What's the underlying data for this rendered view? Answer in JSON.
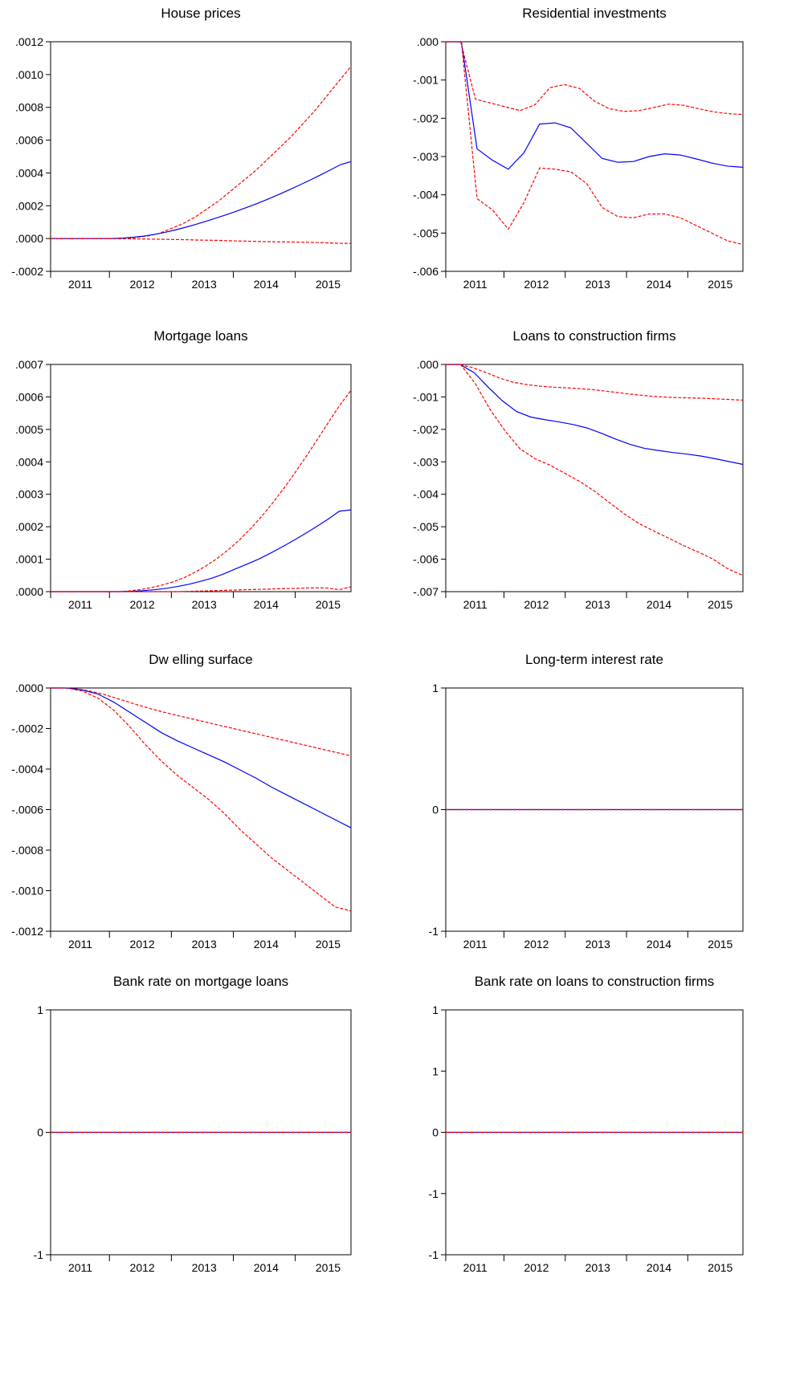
{
  "chart_data": [
    {
      "type": "line",
      "title": "House prices",
      "ylim": [
        -0.0002,
        0.0012
      ],
      "yticks": [
        ".0012",
        ".0010",
        ".0008",
        ".0006",
        ".0004",
        ".0002",
        ".0000",
        "-.0002"
      ],
      "yvalues": [
        0.0012,
        0.001,
        0.0008,
        0.0006,
        0.0004,
        0.0002,
        0.0,
        -0.0002
      ],
      "xticks": [
        "2011",
        "2012",
        "2013",
        "2014",
        "2015"
      ],
      "series": [
        {
          "role": "upper",
          "color": "#ff0000",
          "dashed": true,
          "values": [
            0,
            0,
            0,
            0,
            0,
            0,
            1e-06,
            6e-06,
            1.5e-05,
            3e-05,
            6e-05,
            9e-05,
            0.00013,
            0.00018,
            0.00023,
            0.00029,
            0.00035,
            0.00041,
            0.00048,
            0.00055,
            0.00062,
            0.0007,
            0.00078,
            0.00087,
            0.00096,
            0.00105
          ]
        },
        {
          "role": "median",
          "color": "#0000ff",
          "dashed": false,
          "values": [
            0,
            0,
            0,
            0,
            0,
            0,
            0,
            3e-06,
            8e-06,
            1.5e-05,
            2.5e-05,
            3.7e-05,
            5.2e-05,
            6.8e-05,
            8.6e-05,
            0.000105,
            0.000125,
            0.000146,
            0.000168,
            0.000191,
            0.000215,
            0.000241,
            0.000268,
            0.000296,
            0.000325,
            0.000355,
            0.000386,
            0.000418,
            0.000451,
            0.000469
          ]
        },
        {
          "role": "lower",
          "color": "#ff0000",
          "dashed": true,
          "values": [
            0,
            0,
            0,
            0,
            0,
            0,
            0,
            -1e-06,
            -2e-06,
            -3e-06,
            -4e-06,
            -5e-06,
            -6e-06,
            -7e-06,
            -9e-06,
            -1e-05,
            -1.1e-05,
            -1.3e-05,
            -1.5e-05,
            -1.6e-05,
            -1.8e-05,
            -1.9e-05,
            -2e-05,
            -2.1e-05,
            -2.2e-05,
            -2.3e-05,
            -2.5e-05,
            -2.7e-05,
            -2.9e-05,
            -3e-05
          ]
        }
      ]
    },
    {
      "type": "line",
      "title": "Residential investments",
      "ylim": [
        -0.006,
        0.0
      ],
      "yticks": [
        ".000",
        "-.001",
        "-.002",
        "-.003",
        "-.004",
        "-.005",
        "-.006"
      ],
      "yvalues": [
        0.0,
        -0.001,
        -0.002,
        -0.003,
        -0.004,
        -0.005,
        -0.006
      ],
      "xticks": [
        "2011",
        "2012",
        "2013",
        "2014",
        "2015"
      ],
      "series": [
        {
          "role": "upper",
          "color": "#ff0000",
          "dashed": true,
          "values": [
            0,
            0,
            -0.0015,
            -0.0016,
            -0.0017,
            -0.0018,
            -0.00165,
            -0.0012,
            -0.00112,
            -0.00122,
            -0.00155,
            -0.00175,
            -0.00182,
            -0.0018,
            -0.00172,
            -0.00163,
            -0.00166,
            -0.00175,
            -0.00183,
            -0.00188,
            -0.0019
          ]
        },
        {
          "role": "median",
          "color": "#0000ff",
          "dashed": false,
          "values": [
            0,
            0,
            -0.0028,
            -0.0031,
            -0.00333,
            -0.0029,
            -0.00215,
            -0.00212,
            -0.00225,
            -0.00265,
            -0.00305,
            -0.00315,
            -0.00313,
            -0.003,
            -0.00293,
            -0.00296,
            -0.00306,
            -0.00317,
            -0.00325,
            -0.00328
          ]
        },
        {
          "role": "lower",
          "color": "#ff0000",
          "dashed": true,
          "values": [
            0,
            0,
            -0.0041,
            -0.0044,
            -0.0049,
            -0.0042,
            -0.0033,
            -0.00333,
            -0.0034,
            -0.0037,
            -0.00433,
            -0.00457,
            -0.0046,
            -0.0045,
            -0.0045,
            -0.0046,
            -0.0048,
            -0.005,
            -0.0052,
            -0.0053
          ]
        }
      ]
    },
    {
      "type": "line",
      "title": "Mortgage loans",
      "ylim": [
        0.0,
        0.0007
      ],
      "yticks": [
        ".0007",
        ".0006",
        ".0005",
        ".0004",
        ".0003",
        ".0002",
        ".0001",
        ".0000"
      ],
      "yvalues": [
        0.0007,
        0.0006,
        0.0005,
        0.0004,
        0.0003,
        0.0002,
        0.0001,
        0.0
      ],
      "xticks": [
        "2011",
        "2012",
        "2013",
        "2014",
        "2015"
      ],
      "series": [
        {
          "role": "upper",
          "color": "#ff0000",
          "dashed": true,
          "values": [
            0,
            0,
            0,
            0,
            0,
            0,
            0,
            2e-06,
            6e-06,
            1.2e-05,
            2e-05,
            3e-05,
            4.3e-05,
            6e-05,
            8e-05,
            0.000103,
            0.00013,
            0.00016,
            0.000195,
            0.000233,
            0.000275,
            0.00032,
            0.000368,
            0.000418,
            0.00047,
            0.000523,
            0.000575,
            0.00062
          ]
        },
        {
          "role": "median",
          "color": "#0000ff",
          "dashed": false,
          "values": [
            0,
            0,
            0,
            0,
            0,
            0,
            0,
            1e-06,
            3e-06,
            6e-06,
            1e-05,
            1.6e-05,
            2.3e-05,
            3.2e-05,
            4.2e-05,
            5.5e-05,
            7e-05,
            8.5e-05,
            0.0001,
            0.000118,
            0.000137,
            0.000157,
            0.000178,
            0.0002,
            0.000223,
            0.000248,
            0.000252
          ]
        },
        {
          "role": "lower",
          "color": "#ff0000",
          "dashed": true,
          "values": [
            0,
            0,
            0,
            0,
            0,
            0,
            0,
            0,
            0,
            0,
            0,
            0,
            1e-06,
            2e-06,
            3e-06,
            4e-06,
            5e-06,
            6e-06,
            7e-06,
            8e-06,
            9e-06,
            1e-05,
            1.1e-05,
            1.2e-05,
            1.1e-05,
            6e-06,
            1.5e-05
          ]
        }
      ]
    },
    {
      "type": "line",
      "title": "Loans to construction firms",
      "ylim": [
        -0.007,
        0.0
      ],
      "yticks": [
        ".000",
        "-.001",
        "-.002",
        "-.003",
        "-.004",
        "-.005",
        "-.006",
        "-.007"
      ],
      "yvalues": [
        0.0,
        -0.001,
        -0.002,
        -0.003,
        -0.004,
        -0.005,
        -0.006,
        -0.007
      ],
      "xticks": [
        "2011",
        "2012",
        "2013",
        "2014",
        "2015"
      ],
      "series": [
        {
          "role": "upper",
          "color": "#ff0000",
          "dashed": true,
          "values": [
            0,
            0,
            -0.0001,
            -0.00025,
            -0.00042,
            -0.00055,
            -0.00062,
            -0.00067,
            -0.0007,
            -0.00072,
            -0.00075,
            -0.00078,
            -0.00083,
            -0.00088,
            -0.00093,
            -0.00097,
            -0.001,
            -0.00102,
            -0.00103,
            -0.00104,
            -0.00106,
            -0.00108,
            -0.0011
          ]
        },
        {
          "role": "median",
          "color": "#0000ff",
          "dashed": false,
          "values": [
            0,
            0,
            -0.00025,
            -0.0007,
            -0.00112,
            -0.00145,
            -0.00162,
            -0.0017,
            -0.00177,
            -0.00185,
            -0.00196,
            -0.00212,
            -0.0023,
            -0.00246,
            -0.00258,
            -0.00265,
            -0.00271,
            -0.00276,
            -0.00282,
            -0.0029,
            -0.00299,
            -0.00308
          ]
        },
        {
          "role": "lower",
          "color": "#ff0000",
          "dashed": true,
          "values": [
            0,
            0,
            -0.0006,
            -0.0014,
            -0.00205,
            -0.0026,
            -0.0029,
            -0.0031,
            -0.00335,
            -0.0036,
            -0.0039,
            -0.00425,
            -0.0046,
            -0.0049,
            -0.00513,
            -0.00535,
            -0.00558,
            -0.00578,
            -0.006,
            -0.0063,
            -0.0065
          ]
        }
      ]
    },
    {
      "type": "line",
      "title": "Dw elling surface",
      "ylim": [
        -0.0012,
        0.0
      ],
      "yticks": [
        ".0000",
        "-.0002",
        "-.0004",
        "-.0006",
        "-.0008",
        "-.0010",
        "-.0012"
      ],
      "yvalues": [
        0.0,
        -0.0002,
        -0.0004,
        -0.0006,
        -0.0008,
        -0.001,
        -0.0012
      ],
      "xticks": [
        "2011",
        "2012",
        "2013",
        "2014",
        "2015"
      ],
      "series": [
        {
          "role": "upper",
          "color": "#ff0000",
          "dashed": true,
          "values": [
            0,
            0,
            -5e-06,
            -1.5e-05,
            -3e-05,
            -5e-05,
            -7e-05,
            -9e-05,
            -0.000108,
            -0.000125,
            -0.00014,
            -0.000155,
            -0.00017,
            -0.000185,
            -0.0002,
            -0.000215,
            -0.00023,
            -0.000245,
            -0.00026,
            -0.000275,
            -0.00029,
            -0.000305,
            -0.00032,
            -0.000335
          ]
        },
        {
          "role": "median",
          "color": "#0000ff",
          "dashed": false,
          "values": [
            0,
            0,
            -1e-05,
            -3e-05,
            -7e-05,
            -0.00012,
            -0.00017,
            -0.00022,
            -0.00026,
            -0.000295,
            -0.00033,
            -0.000365,
            -0.000405,
            -0.000445,
            -0.00049,
            -0.00053,
            -0.00057,
            -0.00061,
            -0.00065,
            -0.00069
          ]
        },
        {
          "role": "lower",
          "color": "#ff0000",
          "dashed": true,
          "values": [
            0,
            0,
            -1.5e-05,
            -5e-05,
            -0.00011,
            -0.00019,
            -0.00028,
            -0.00036,
            -0.00043,
            -0.00049,
            -0.00055,
            -0.00062,
            -0.0007,
            -0.00077,
            -0.00084,
            -0.0009,
            -0.00096,
            -0.00102,
            -0.00108,
            -0.0011
          ]
        }
      ]
    },
    {
      "type": "line",
      "title": "Long-term interest rate",
      "ylim": [
        -1,
        1
      ],
      "yticks": [
        "1",
        "0",
        "-1"
      ],
      "yvalues": [
        1,
        0,
        -1
      ],
      "xticks": [
        "2011",
        "2012",
        "2013",
        "2014",
        "2015"
      ],
      "series": [
        {
          "role": "upper",
          "color": "#ff0000",
          "dashed": true,
          "values": [
            0,
            0
          ]
        },
        {
          "role": "median",
          "color": "#0000ff",
          "dashed": false,
          "values": [
            0,
            0
          ]
        },
        {
          "role": "lower",
          "color": "#ff0000",
          "dashed": true,
          "values": [
            0,
            0
          ]
        }
      ]
    },
    {
      "type": "line",
      "title": "Bank rate on mortgage loans",
      "ylim": [
        -1,
        1
      ],
      "yticks": [
        "1",
        "0",
        "-1"
      ],
      "yvalues": [
        1,
        0,
        -1
      ],
      "xticks": [
        "2011",
        "2012",
        "2013",
        "2014",
        "2015"
      ],
      "series": [
        {
          "role": "upper",
          "color": "#ff0000",
          "dashed": true,
          "values": [
            0,
            0
          ]
        },
        {
          "role": "median",
          "color": "#0000ff",
          "dashed": false,
          "values": [
            0,
            0
          ]
        },
        {
          "role": "lower",
          "color": "#ff0000",
          "dashed": true,
          "values": [
            0,
            0
          ]
        }
      ]
    },
    {
      "type": "line",
      "title": "Bank rate on loans to construction firms",
      "ylim": [
        -1,
        1
      ],
      "yticks": [
        "1",
        "1",
        "0",
        "-1",
        "-1"
      ],
      "yvalues": [
        1,
        0.5,
        0,
        -0.5,
        -1
      ],
      "xticks": [
        "2011",
        "2012",
        "2013",
        "2014",
        "2015"
      ],
      "series": [
        {
          "role": "upper",
          "color": "#ff0000",
          "dashed": true,
          "values": [
            0,
            0
          ]
        },
        {
          "role": "median",
          "color": "#0000ff",
          "dashed": false,
          "values": [
            0,
            0
          ]
        },
        {
          "role": "lower",
          "color": "#ff0000",
          "dashed": true,
          "values": [
            0,
            0
          ]
        }
      ]
    }
  ]
}
